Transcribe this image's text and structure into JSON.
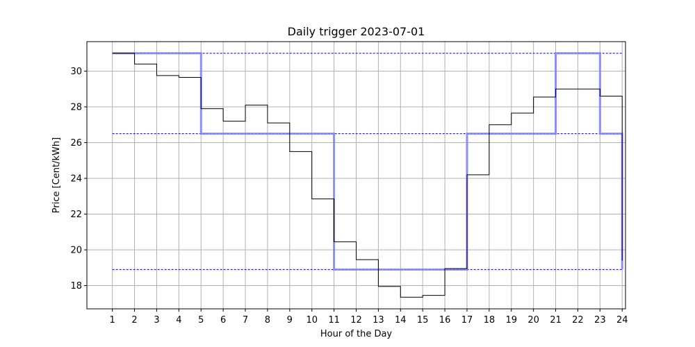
{
  "chart_data": {
    "type": "line",
    "title": "Daily trigger 2023-07-01",
    "xlabel": "Hour of the Day",
    "ylabel": "Price [Cent/kWh]",
    "xlim": [
      -0.15,
      24.15
    ],
    "ylim": [
      16.7,
      31.65
    ],
    "x_ticks": [
      1,
      2,
      3,
      4,
      5,
      6,
      7,
      8,
      9,
      10,
      11,
      12,
      13,
      14,
      15,
      16,
      17,
      18,
      19,
      20,
      21,
      22,
      23,
      24
    ],
    "y_ticks": [
      18,
      20,
      22,
      24,
      26,
      28,
      30
    ],
    "grid": true,
    "series": [
      {
        "kind": "step-post",
        "color": "#000000",
        "x": [
          1,
          2,
          3,
          4,
          5,
          6,
          7,
          8,
          9,
          10,
          11,
          12,
          13,
          14,
          15,
          16,
          17,
          18,
          19,
          20,
          21,
          22,
          23,
          24
        ],
        "values": [
          31.0,
          30.4,
          29.75,
          29.65,
          27.9,
          27.2,
          28.1,
          27.1,
          25.5,
          22.85,
          20.45,
          19.45,
          17.95,
          17.35,
          17.45,
          18.95,
          24.2,
          27.0,
          27.65,
          28.55,
          29.0,
          29.0,
          28.6,
          19.4
        ]
      },
      {
        "kind": "step-post",
        "color": "#8080ff",
        "x": [
          1,
          2,
          3,
          4,
          5,
          6,
          7,
          8,
          9,
          10,
          11,
          12,
          13,
          14,
          15,
          16,
          17,
          18,
          19,
          20,
          21,
          22,
          23,
          24
        ],
        "values": [
          31.0,
          31.0,
          31.0,
          31.0,
          26.5,
          26.5,
          26.5,
          26.5,
          26.5,
          26.5,
          18.9,
          18.9,
          18.9,
          18.9,
          18.9,
          18.9,
          26.5,
          26.5,
          26.5,
          26.5,
          31.0,
          31.0,
          26.5,
          18.9
        ]
      }
    ],
    "hlines": [
      {
        "y": 31.0,
        "color": "#0000cc",
        "style": "dashed"
      },
      {
        "y": 26.5,
        "color": "#0000cc",
        "style": "dashed"
      },
      {
        "y": 18.9,
        "color": "#0000cc",
        "style": "dashed"
      }
    ]
  }
}
